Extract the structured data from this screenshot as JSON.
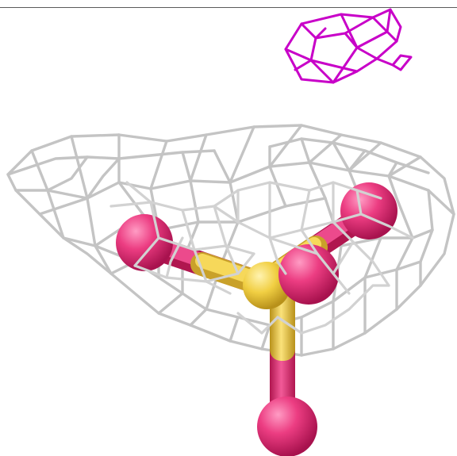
{
  "scene": {
    "background": "#ffffff",
    "colors": {
      "density_mesh": "#c4c4c4",
      "density_mesh_highlight": "#e4e4e4",
      "difference_mesh": "#c800c8",
      "difference_mesh_dark": "#8a008a",
      "oxygen_atom": "#e8327a",
      "sulfur_atom": "#f0d04a",
      "frame_rule": "#5a5a5a"
    }
  }
}
